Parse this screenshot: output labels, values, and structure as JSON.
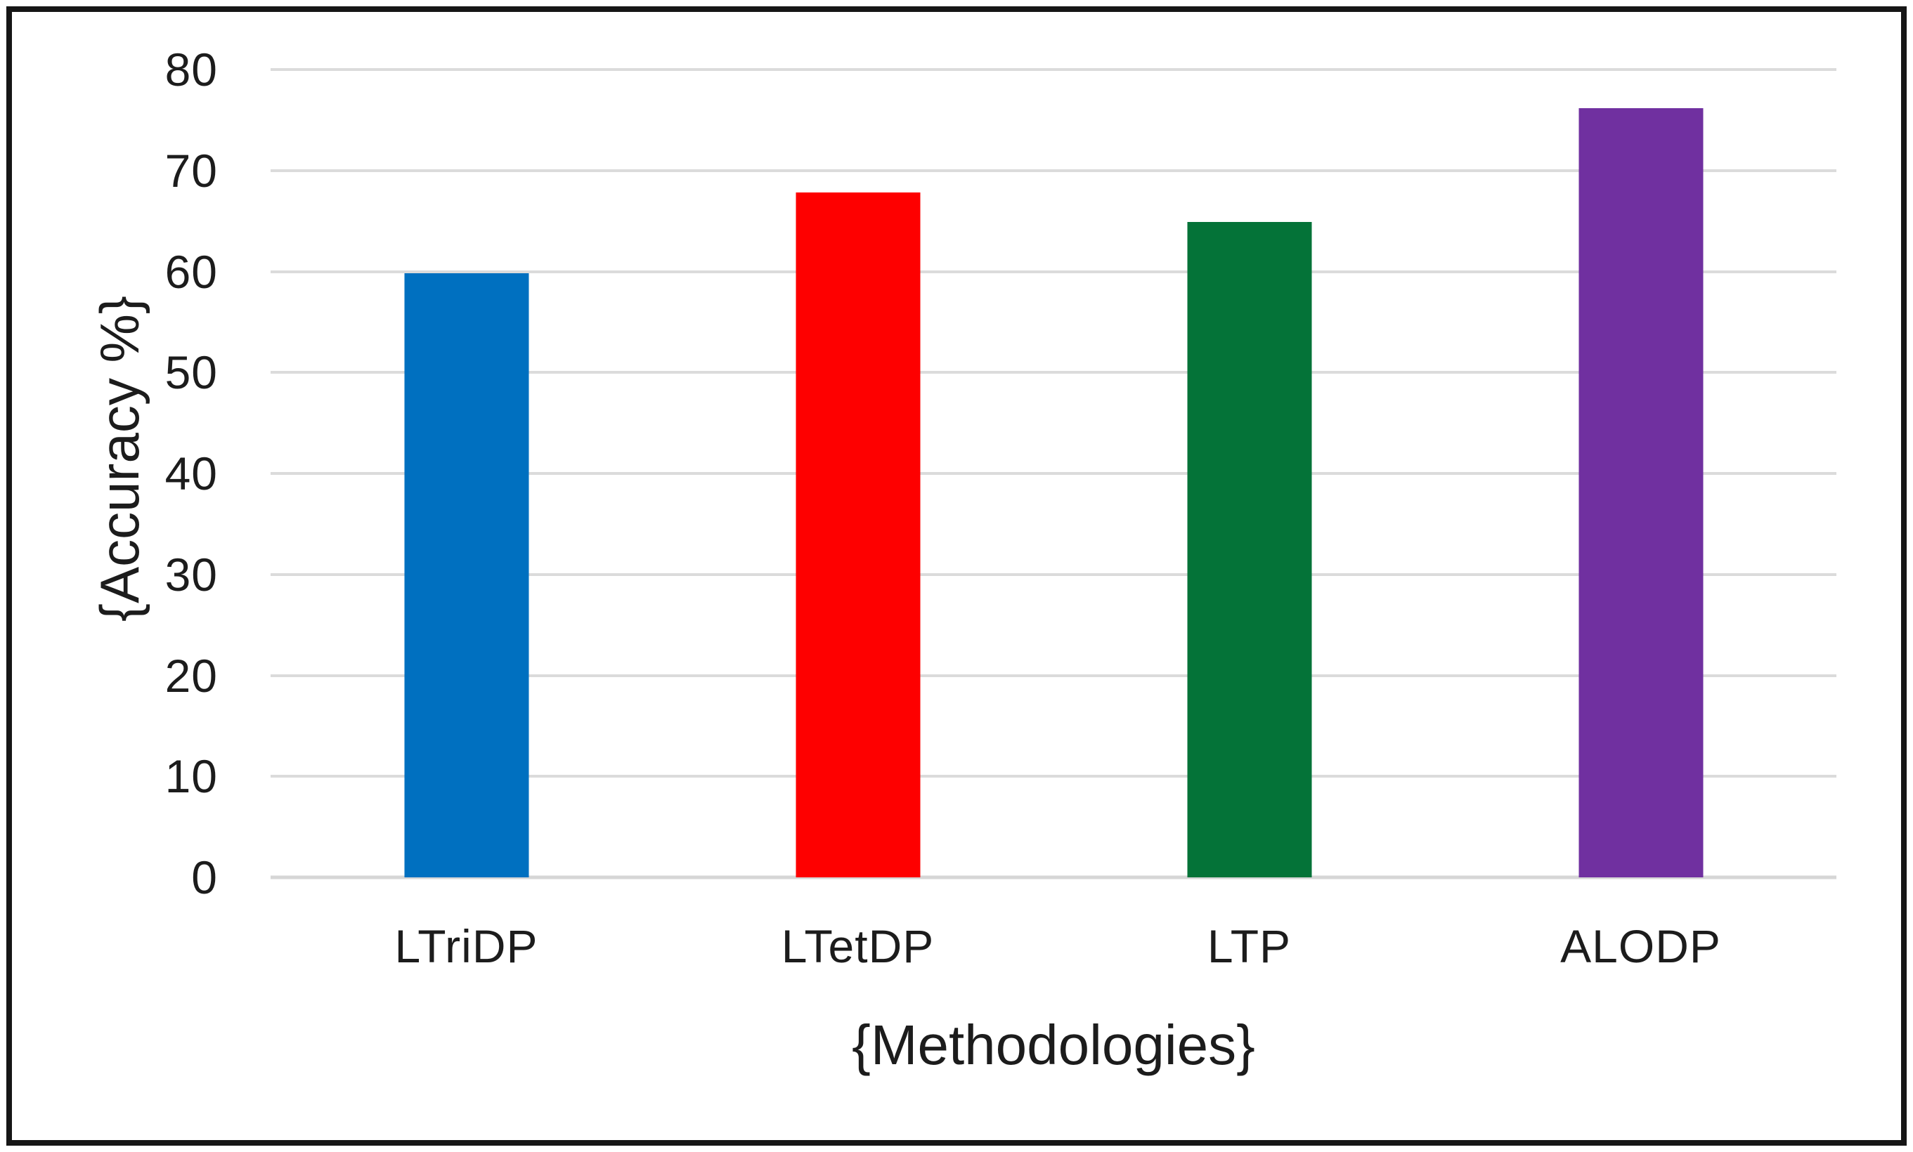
{
  "chart_data": {
    "type": "bar",
    "title": "",
    "categories": [
      "LTriDP",
      "LTetDP",
      "LTP",
      "ALODP"
    ],
    "values": [
      59.8,
      67.8,
      64.9,
      76.2
    ],
    "bar_colors": [
      "#0070C0",
      "#FE0000",
      "#047338",
      "#7030A0"
    ],
    "xlabel": "{Methodologies}",
    "ylabel": "{Accuracy %}",
    "ylim": [
      0,
      80
    ],
    "ytick_step": 10,
    "yticks": [
      0,
      10,
      20,
      30,
      40,
      50,
      60,
      70,
      80
    ],
    "grid": "horizontal",
    "legend": "none",
    "colors": {
      "gridline": "#DBDBDB",
      "axis_line": "#D6D6D6",
      "text": "#1C1C1C",
      "background": "#FFFFFF",
      "frame_border": "#161616"
    }
  }
}
